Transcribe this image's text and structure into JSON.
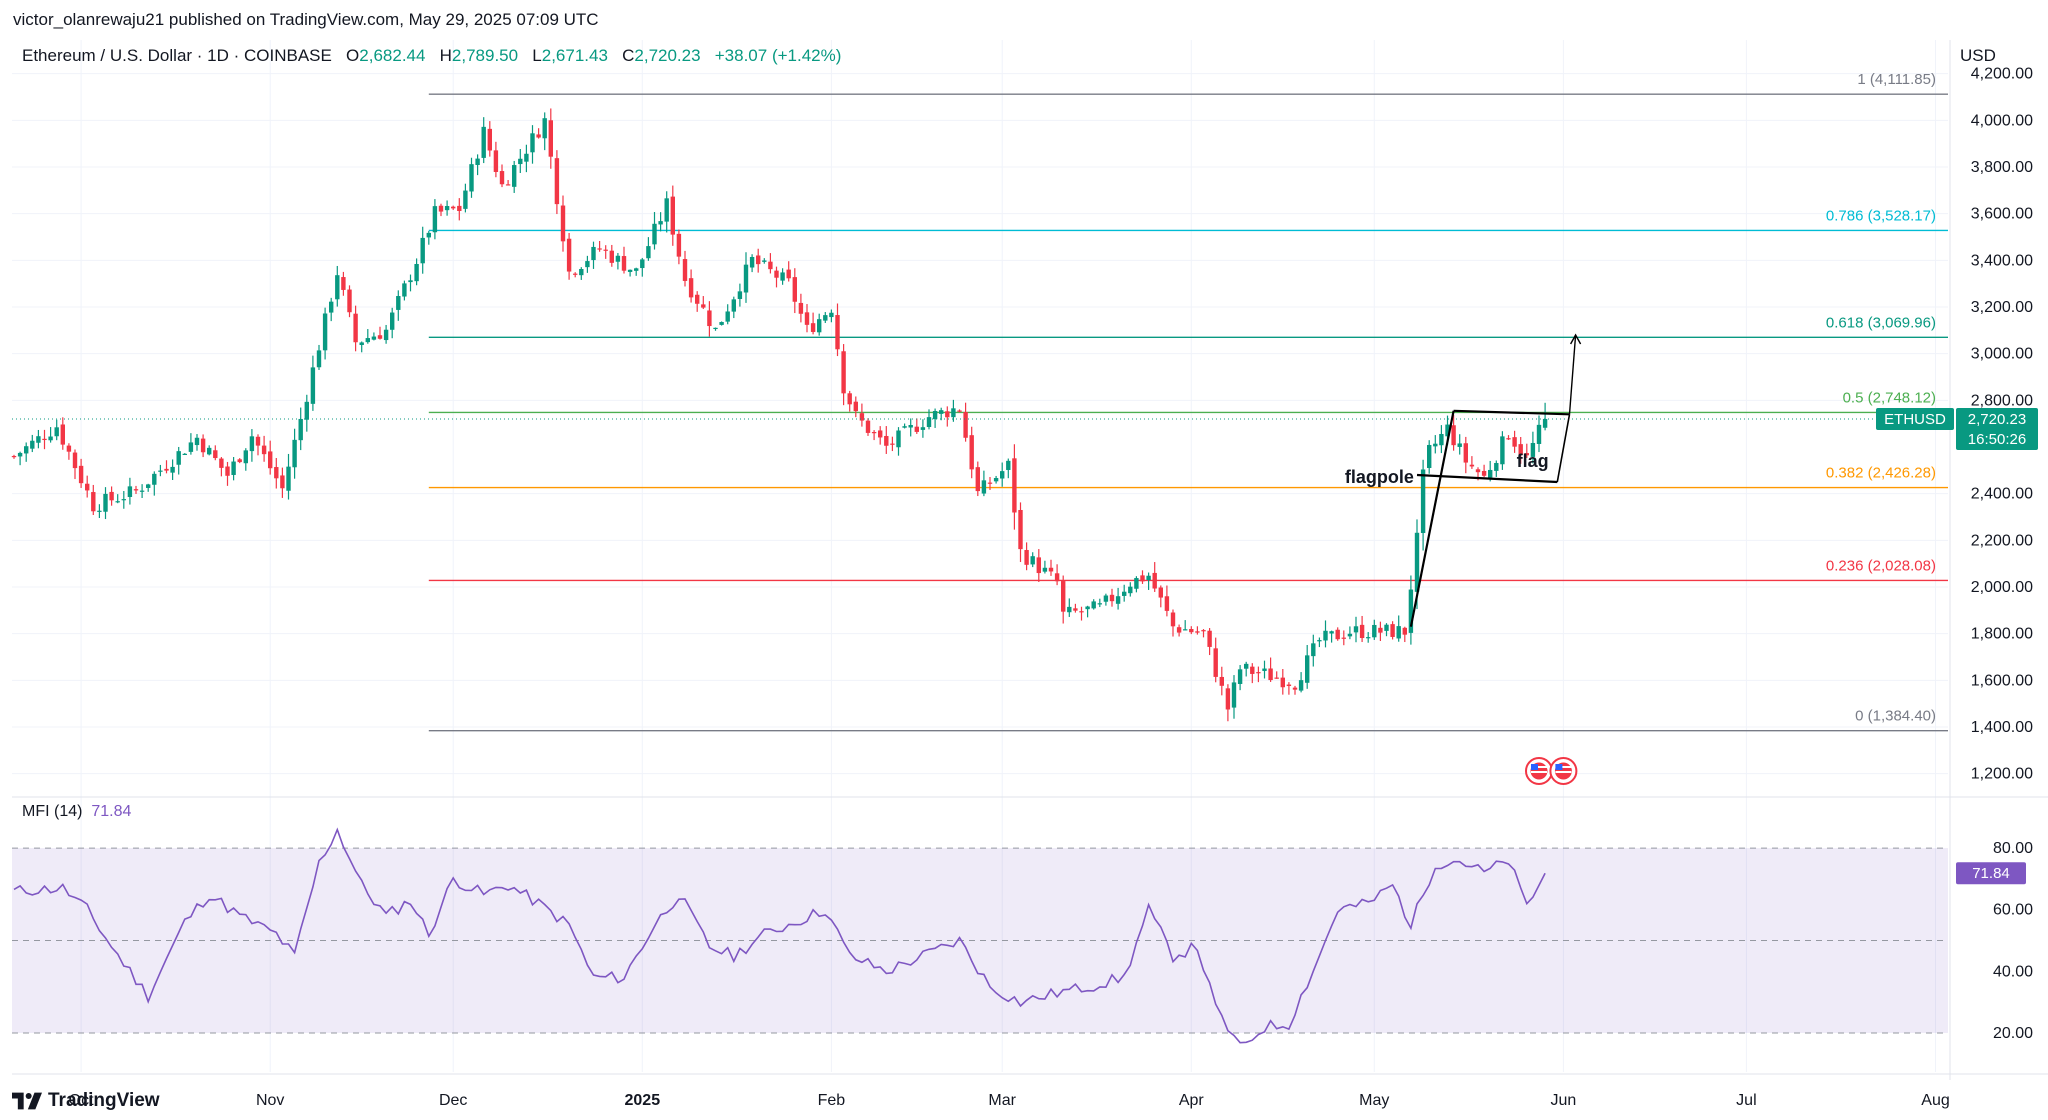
{
  "header": {
    "publisher": "victor_olanrewaju21 published on TradingView.com, May 29, 2025 07:09 UTC",
    "symbol": "Ethereum / U.S. Dollar · 1D · COINBASE",
    "open_label": "O",
    "open": "2,682.44",
    "high_label": "H",
    "high": "2,789.50",
    "low_label": "L",
    "low": "2,671.43",
    "close_label": "C",
    "close": "2,720.23",
    "change": "+38.07 (+1.42%)",
    "currency": "USD"
  },
  "price_badge": {
    "ticker": "ETHUSD",
    "price": "2,720.23",
    "countdown": "16:50:26"
  },
  "mfi": {
    "label": "MFI (14)",
    "value": "71.84"
  },
  "brand": "TradingView",
  "annotations": {
    "flagpole": "flagpole",
    "flag": "flag"
  },
  "colors": {
    "up": "#089981",
    "down": "#f23645",
    "mfi": "#7e57c2",
    "fib_0": "#787b86",
    "fib_236": "#f23645",
    "fib_382": "#ff9800",
    "fib_5": "#4caf50",
    "fib_618": "#089981",
    "fib_786": "#00bcd4",
    "fib_1": "#787b86"
  },
  "chart_data": {
    "type": "candlestick",
    "x_ticks": [
      "Oct",
      "Nov",
      "Dec",
      "2025",
      "Feb",
      "Mar",
      "Apr",
      "May",
      "Jun",
      "Jul",
      "Aug"
    ],
    "y_ticks": [
      "4,200.00",
      "4,000.00",
      "3,800.00",
      "3,600.00",
      "3,400.00",
      "3,200.00",
      "3,000.00",
      "2,800.00",
      "2,400.00",
      "2,200.00",
      "2,000.00",
      "1,800.00",
      "1,600.00",
      "1,400.00",
      "1,200.00"
    ],
    "ylim": [
      1130,
      4250
    ],
    "fib_levels": [
      {
        "label": "1 (4,111.85)",
        "value": 4111.85,
        "color": "#787b86"
      },
      {
        "label": "0.786 (3,528.17)",
        "value": 3528.17,
        "color": "#00bcd4"
      },
      {
        "label": "0.618 (3,069.96)",
        "value": 3069.96,
        "color": "#089981"
      },
      {
        "label": "0.5 (2,748.12)",
        "value": 2748.12,
        "color": "#4caf50"
      },
      {
        "label": "0.382 (2,426.28)",
        "value": 2426.28,
        "color": "#ff9800"
      },
      {
        "label": "0.236 (2,028.08)",
        "value": 2028.08,
        "color": "#f23645"
      },
      {
        "label": "0 (1,384.40)",
        "value": 1384.4,
        "color": "#787b86"
      }
    ],
    "close_anchors": [
      [
        "2024-09-20",
        2560
      ],
      [
        "2024-09-27",
        2690
      ],
      [
        "2024-10-03",
        2350
      ],
      [
        "2024-10-10",
        2410
      ],
      [
        "2024-10-20",
        2640
      ],
      [
        "2024-10-25",
        2480
      ],
      [
        "2024-10-29",
        2650
      ],
      [
        "2024-11-03",
        2420
      ],
      [
        "2024-11-06",
        2720
      ],
      [
        "2024-11-12",
        3350
      ],
      [
        "2024-11-15",
        3050
      ],
      [
        "2024-11-20",
        3100
      ],
      [
        "2024-11-25",
        3400
      ],
      [
        "2024-11-28",
        3600
      ],
      [
        "2024-12-02",
        3620
      ],
      [
        "2024-12-06",
        3950
      ],
      [
        "2024-12-09",
        3720
      ],
      [
        "2024-12-11",
        3800
      ],
      [
        "2024-12-16",
        4000
      ],
      [
        "2024-12-20",
        3350
      ],
      [
        "2024-12-25",
        3450
      ],
      [
        "2024-12-31",
        3350
      ],
      [
        "2025-01-05",
        3640
      ],
      [
        "2025-01-08",
        3320
      ],
      [
        "2025-01-13",
        3100
      ],
      [
        "2025-01-19",
        3400
      ],
      [
        "2025-01-25",
        3300
      ],
      [
        "2025-01-28",
        3100
      ],
      [
        "2025-02-01",
        3200
      ],
      [
        "2025-02-03",
        2860
      ],
      [
        "2025-02-05",
        2730
      ],
      [
        "2025-02-10",
        2600
      ],
      [
        "2025-02-17",
        2730
      ],
      [
        "2025-02-22",
        2770
      ],
      [
        "2025-02-25",
        2400
      ],
      [
        "2025-03-02",
        2520
      ],
      [
        "2025-03-04",
        2150
      ],
      [
        "2025-03-10",
        2020
      ],
      [
        "2025-03-11",
        1880
      ],
      [
        "2025-03-17",
        1910
      ],
      [
        "2025-03-22",
        2020
      ],
      [
        "2025-03-25",
        2050
      ],
      [
        "2025-03-29",
        1830
      ],
      [
        "2025-04-03",
        1800
      ],
      [
        "2025-04-07",
        1480
      ],
      [
        "2025-04-09",
        1650
      ],
      [
        "2025-04-14",
        1620
      ],
      [
        "2025-04-18",
        1590
      ],
      [
        "2025-04-22",
        1770
      ],
      [
        "2025-04-27",
        1810
      ],
      [
        "2025-05-06",
        1810
      ],
      [
        "2025-05-08",
        2200
      ],
      [
        "2025-05-09",
        2470
      ],
      [
        "2025-05-10",
        2580
      ],
      [
        "2025-05-13",
        2680
      ],
      [
        "2025-05-16",
        2540
      ],
      [
        "2025-05-19",
        2470
      ],
      [
        "2025-05-23",
        2660
      ],
      [
        "2025-05-26",
        2550
      ],
      [
        "2025-05-29",
        2720.23
      ]
    ],
    "mfi_ticks": [
      "80.00",
      "60.00",
      "40.00",
      "20.00"
    ],
    "mfi_anchors": [
      [
        "2024-09-20",
        66
      ],
      [
        "2024-09-28",
        67
      ],
      [
        "2024-10-02",
        60
      ],
      [
        "2024-10-06",
        48
      ],
      [
        "2024-10-12",
        32
      ],
      [
        "2024-10-18",
        56
      ],
      [
        "2024-10-22",
        65
      ],
      [
        "2024-10-27",
        58
      ],
      [
        "2024-11-02",
        52
      ],
      [
        "2024-11-05",
        45
      ],
      [
        "2024-11-09",
        75
      ],
      [
        "2024-11-12",
        86
      ],
      [
        "2024-11-16",
        68
      ],
      [
        "2024-11-20",
        58
      ],
      [
        "2024-11-24",
        63
      ],
      [
        "2024-11-27",
        52
      ],
      [
        "2024-12-01",
        70
      ],
      [
        "2024-12-06",
        65
      ],
      [
        "2024-12-10",
        68
      ],
      [
        "2024-12-15",
        62
      ],
      [
        "2024-12-20",
        55
      ],
      [
        "2024-12-24",
        38
      ],
      [
        "2024-12-29",
        38
      ],
      [
        "2025-01-03",
        55
      ],
      [
        "2025-01-07",
        65
      ],
      [
        "2025-01-12",
        48
      ],
      [
        "2025-01-16",
        45
      ],
      [
        "2025-01-21",
        52
      ],
      [
        "2025-01-26",
        56
      ],
      [
        "2025-01-31",
        60
      ],
      [
        "2025-02-04",
        45
      ],
      [
        "2025-02-10",
        40
      ],
      [
        "2025-02-16",
        45
      ],
      [
        "2025-02-22",
        50
      ],
      [
        "2025-02-27",
        35
      ],
      [
        "2025-03-04",
        30
      ],
      [
        "2025-03-10",
        33
      ],
      [
        "2025-03-15",
        35
      ],
      [
        "2025-03-21",
        38
      ],
      [
        "2025-03-25",
        60
      ],
      [
        "2025-03-29",
        45
      ],
      [
        "2025-04-02",
        48
      ],
      [
        "2025-04-05",
        28
      ],
      [
        "2025-04-09",
        15
      ],
      [
        "2025-04-13",
        22
      ],
      [
        "2025-04-17",
        23
      ],
      [
        "2025-04-22",
        45
      ],
      [
        "2025-04-25",
        60
      ],
      [
        "2025-04-30",
        62
      ],
      [
        "2025-05-04",
        68
      ],
      [
        "2025-05-07",
        55
      ],
      [
        "2025-05-11",
        75
      ],
      [
        "2025-05-15",
        76
      ],
      [
        "2025-05-19",
        72
      ],
      [
        "2025-05-23",
        76
      ],
      [
        "2025-05-26",
        61
      ],
      [
        "2025-05-29",
        71.84
      ]
    ],
    "mfi_ylim": [
      8,
      93
    ]
  }
}
